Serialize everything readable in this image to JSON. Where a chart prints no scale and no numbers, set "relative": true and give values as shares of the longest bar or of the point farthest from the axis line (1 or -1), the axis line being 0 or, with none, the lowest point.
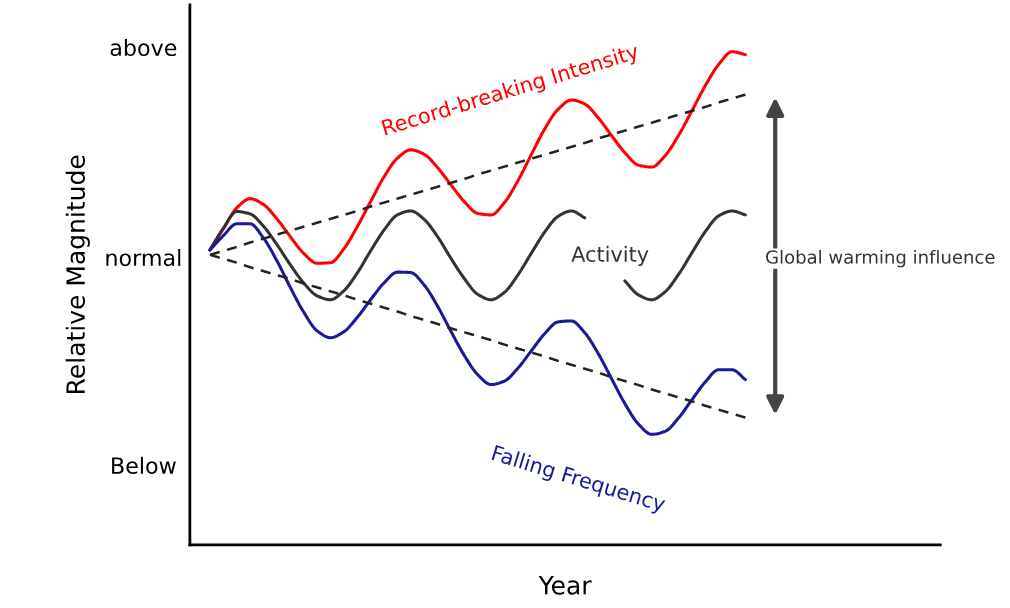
{
  "chart_data": {
    "type": "line",
    "relative": true,
    "xlabel": "Year",
    "ylabel": "Relative Magnitude",
    "categories": [
      null,
      null,
      null,
      null,
      null,
      null,
      null,
      null,
      null,
      null,
      null,
      null,
      null,
      null,
      null,
      null,
      null,
      null,
      null,
      null,
      null,
      null,
      null,
      null,
      null,
      null,
      null,
      null,
      null,
      null,
      null,
      null,
      null,
      null,
      null,
      null,
      null,
      null,
      null,
      null,
      null
    ],
    "annotations": [
      "above",
      "normal",
      "Below",
      "Global warming influence"
    ],
    "series": [
      {
        "name": "Record-breaking Intensity",
        "color": "#ff0000",
        "values": [
          0.598,
          0.641,
          0.683,
          0.702,
          0.69,
          0.661,
          0.625,
          0.591,
          0.571,
          0.572,
          0.6,
          0.645,
          0.696,
          0.746,
          0.784,
          0.801,
          0.792,
          0.765,
          0.73,
          0.696,
          0.672,
          0.669,
          0.694,
          0.738,
          0.791,
          0.843,
          0.883,
          0.902,
          0.894,
          0.866,
          0.83,
          0.795,
          0.77,
          0.766,
          0.789,
          0.83,
          0.88,
          0.931,
          0.974,
          1.0,
          0.994
        ]
      },
      {
        "name": "Activity",
        "color": "#333333",
        "values": [
          0.598,
          0.642,
          0.676,
          0.671,
          0.646,
          0.609,
          0.568,
          0.531,
          0.505,
          0.497,
          0.515,
          0.551,
          0.596,
          0.638,
          0.669,
          0.677,
          0.66,
          0.625,
          0.581,
          0.54,
          0.508,
          0.497,
          0.512,
          0.547,
          0.591,
          0.634,
          0.666,
          0.677,
          0.663,
          null,
          null,
          0.535,
          0.507,
          0.497,
          0.513,
          0.548,
          0.592,
          0.635,
          0.667,
          0.677,
          0.669
        ]
      },
      {
        "name": "Falling Frequency",
        "color": "#1a1a99",
        "values": [
          0.598,
          0.627,
          0.651,
          0.651,
          0.622,
          0.576,
          0.522,
          0.472,
          0.434,
          0.42,
          0.432,
          0.461,
          0.497,
          0.531,
          0.553,
          0.552,
          0.527,
          0.484,
          0.433,
          0.384,
          0.345,
          0.325,
          0.332,
          0.358,
          0.393,
          0.428,
          0.452,
          0.454,
          0.43,
          0.388,
          0.337,
          0.286,
          0.245,
          0.224,
          0.23,
          0.257,
          0.294,
          0.33,
          0.355,
          0.355,
          0.335
        ]
      },
      {
        "color": "#222222",
        "line_style": "dashed",
        "values": [
          0.588,
          0.596,
          0.604,
          0.613,
          0.621,
          0.629,
          0.637,
          0.645,
          0.653,
          0.661,
          0.669,
          0.677,
          0.686,
          0.694,
          0.702,
          0.71,
          0.718,
          0.726,
          0.734,
          0.742,
          0.751,
          0.759,
          0.767,
          0.775,
          0.783,
          0.791,
          0.799,
          0.807,
          0.815,
          0.824,
          0.832,
          0.84,
          0.848,
          0.856,
          0.864,
          0.872,
          0.88,
          0.888,
          0.897,
          0.905,
          0.913
        ]
      },
      {
        "color": "#222222",
        "line_style": "dashed",
        "values": [
          0.588,
          0.58,
          0.572,
          0.563,
          0.555,
          0.547,
          0.539,
          0.53,
          0.522,
          0.514,
          0.506,
          0.497,
          0.489,
          0.481,
          0.473,
          0.464,
          0.456,
          0.448,
          0.439,
          0.431,
          0.423,
          0.415,
          0.406,
          0.398,
          0.39,
          0.382,
          0.373,
          0.365,
          0.357,
          0.349,
          0.34,
          0.332,
          0.324,
          0.315,
          0.307,
          0.299,
          0.291,
          0.282,
          0.274,
          0.266,
          0.258
        ]
      }
    ]
  }
}
